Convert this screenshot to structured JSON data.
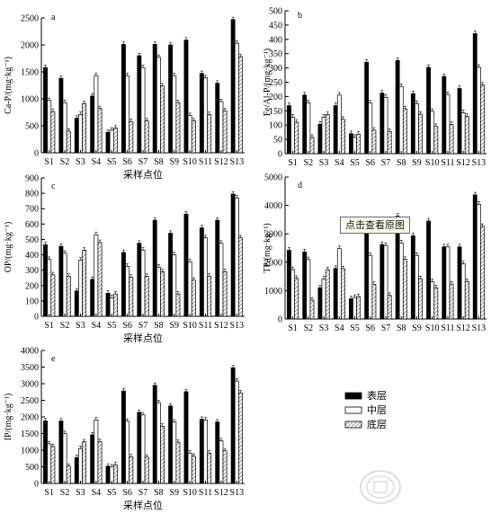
{
  "colors": {
    "surface": "#000000",
    "middle": "#ffffff",
    "bottom_hatch": "#444444"
  },
  "legend": {
    "items": [
      "表层",
      "中层",
      "底层"
    ],
    "placement": "right"
  },
  "tooltip": {
    "text": "点击查看原图"
  },
  "chart_data": [
    {
      "type": "bar",
      "panel": "a",
      "ylabel": "Ca-P/(mg·kg⁻¹)",
      "xlabel": "采样点位",
      "ylim": [
        0,
        2500
      ],
      "yticks": [
        0,
        500,
        1000,
        1500,
        2000,
        2500
      ],
      "grid": false,
      "categories": [
        "S1",
        "S2",
        "S3",
        "S4",
        "S5",
        "S6",
        "S7",
        "S8",
        "S9",
        "S10",
        "S11",
        "S12",
        "S13"
      ],
      "series": [
        {
          "name": "表层",
          "values": [
            1580,
            1380,
            640,
            1050,
            380,
            2010,
            1800,
            2010,
            2000,
            2090,
            1470,
            1290,
            2470
          ]
        },
        {
          "name": "中层",
          "values": [
            970,
            930,
            710,
            1430,
            420,
            1430,
            1580,
            1770,
            1430,
            690,
            1390,
            950,
            2030
          ]
        },
        {
          "name": "底层",
          "values": [
            760,
            400,
            910,
            820,
            460,
            580,
            590,
            1240,
            930,
            590,
            710,
            780,
            1780
          ]
        }
      ]
    },
    {
      "type": "bar",
      "panel": "b",
      "ylabel": "Fe/Al-P/(mg·kg⁻¹)",
      "xlabel": "",
      "ylim": [
        0,
        500
      ],
      "yticks": [
        0,
        50,
        100,
        150,
        200,
        250,
        300,
        350,
        400,
        450,
        500
      ],
      "grid": false,
      "categories": [
        "S1",
        "S2",
        "S3",
        "S4",
        "S5",
        "S6",
        "S7",
        "S8",
        "S9",
        "S10",
        "S11",
        "S12",
        "S13"
      ],
      "series": [
        {
          "name": "表层",
          "values": [
            168,
            205,
            103,
            168,
            70,
            320,
            212,
            326,
            210,
            302,
            270,
            228,
            420
          ]
        },
        {
          "name": "中层",
          "values": [
            128,
            178,
            128,
            205,
            57,
            177,
            197,
            235,
            175,
            148,
            207,
            143,
            302
          ]
        },
        {
          "name": "底层",
          "values": [
            110,
            57,
            137,
            120,
            68,
            82,
            78,
            157,
            138,
            95,
            102,
            130,
            240
          ]
        }
      ]
    },
    {
      "type": "bar",
      "panel": "c",
      "ylabel": "OP/(mg·kg⁻¹)",
      "xlabel": "采样点位",
      "ylim": [
        0,
        900
      ],
      "yticks": [
        0,
        100,
        200,
        300,
        400,
        500,
        600,
        700,
        800,
        900
      ],
      "grid": false,
      "categories": [
        "S1",
        "S2",
        "S3",
        "S4",
        "S5",
        "S6",
        "S7",
        "S8",
        "S9",
        "S10",
        "S11",
        "S12",
        "S13"
      ],
      "series": [
        {
          "name": "表层",
          "values": [
            465,
            455,
            165,
            240,
            150,
            415,
            475,
            625,
            540,
            665,
            575,
            625,
            795
          ]
        },
        {
          "name": "中层",
          "values": [
            370,
            410,
            365,
            530,
            120,
            325,
            430,
            320,
            400,
            355,
            510,
            475,
            770
          ]
        },
        {
          "name": "底层",
          "values": [
            270,
            260,
            430,
            480,
            145,
            255,
            260,
            290,
            145,
            235,
            260,
            290,
            510
          ]
        }
      ]
    },
    {
      "type": "bar",
      "panel": "d",
      "ylabel": "TP/(mg·kg⁻¹)",
      "xlabel": "",
      "ylim": [
        0,
        5000
      ],
      "yticks": [
        0,
        1000,
        2000,
        3000,
        4000,
        5000
      ],
      "grid": false,
      "categories": [
        "S1",
        "S2",
        "S3",
        "S4",
        "S5",
        "S6",
        "S7",
        "S8",
        "S9",
        "S10",
        "S11",
        "S12",
        "S13"
      ],
      "series": [
        {
          "name": "表层",
          "values": [
            2420,
            2360,
            1100,
            1780,
            710,
            3080,
            2620,
            3620,
            2930,
            3450,
            2540,
            2540,
            4370
          ]
        },
        {
          "name": "中层",
          "values": [
            1740,
            2090,
            1410,
            2480,
            760,
            2240,
            2590,
            2680,
            2240,
            1310,
            2540,
            1940,
            4040
          ]
        },
        {
          "name": "底层",
          "values": [
            1430,
            660,
            1740,
            1770,
            790,
            1220,
            830,
            2100,
            1420,
            1100,
            1230,
            1320,
            3260
          ]
        }
      ]
    },
    {
      "type": "bar",
      "panel": "e",
      "ylabel": "IP/(mg·kg⁻¹)",
      "xlabel": "采样点位",
      "ylim": [
        0,
        4000
      ],
      "yticks": [
        0,
        500,
        1000,
        1500,
        2000,
        2500,
        3000,
        3500,
        4000
      ],
      "grid": false,
      "categories": [
        "S1",
        "S2",
        "S3",
        "S4",
        "S5",
        "S6",
        "S7",
        "S8",
        "S9",
        "S10",
        "S11",
        "S12",
        "S13"
      ],
      "series": [
        {
          "name": "表层",
          "values": [
            1880,
            1880,
            780,
            1460,
            520,
            2780,
            2140,
            2950,
            2330,
            2760,
            1930,
            1850,
            3480
          ]
        },
        {
          "name": "中层",
          "values": [
            1190,
            1500,
            1050,
            1910,
            500,
            1870,
            2060,
            2430,
            1850,
            910,
            1910,
            1280,
            3080
          ]
        },
        {
          "name": "底层",
          "values": [
            1110,
            520,
            1250,
            1260,
            560,
            800,
            790,
            1720,
            1240,
            820,
            910,
            980,
            2720
          ]
        }
      ]
    }
  ]
}
